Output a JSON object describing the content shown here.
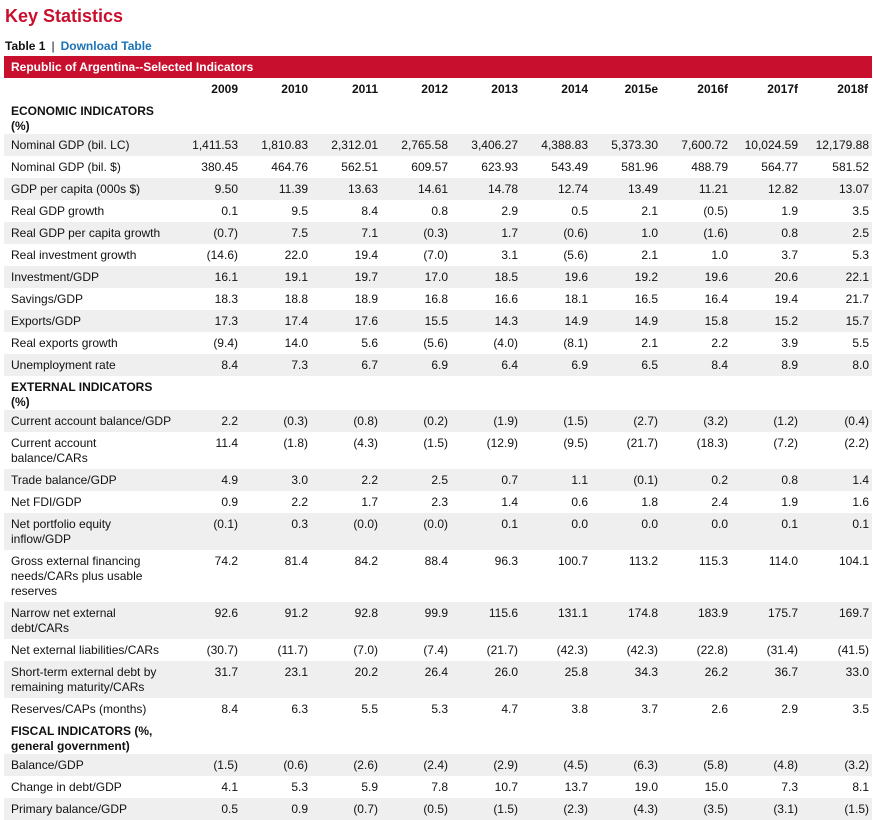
{
  "page": {
    "title": "Key Statistics",
    "table_label": "Table 1",
    "separator": "|",
    "download_label": "Download Table",
    "banner": "Republic of Argentina--Selected Indicators"
  },
  "colors": {
    "accent": "#c8102e",
    "link": "#1a73b8",
    "row_shade": "#efefef"
  },
  "table": {
    "years": [
      "2009",
      "2010",
      "2011",
      "2012",
      "2013",
      "2014",
      "2015e",
      "2016f",
      "2017f",
      "2018f"
    ],
    "sections": [
      {
        "title": "ECONOMIC INDICATORS (%)",
        "rows": [
          {
            "label": "Nominal GDP (bil. LC)",
            "values": [
              "1,411.53",
              "1,810.83",
              "2,312.01",
              "2,765.58",
              "3,406.27",
              "4,388.83",
              "5,373.30",
              "7,600.72",
              "10,024.59",
              "12,179.88"
            ]
          },
          {
            "label": "Nominal GDP (bil. $)",
            "values": [
              "380.45",
              "464.76",
              "562.51",
              "609.57",
              "623.93",
              "543.49",
              "581.96",
              "488.79",
              "564.77",
              "581.52"
            ]
          },
          {
            "label": "GDP per capita (000s $)",
            "values": [
              "9.50",
              "11.39",
              "13.63",
              "14.61",
              "14.78",
              "12.74",
              "13.49",
              "11.21",
              "12.82",
              "13.07"
            ]
          },
          {
            "label": "Real GDP growth",
            "values": [
              "0.1",
              "9.5",
              "8.4",
              "0.8",
              "2.9",
              "0.5",
              "2.1",
              "(0.5)",
              "1.9",
              "3.5"
            ]
          },
          {
            "label": "Real GDP per capita growth",
            "values": [
              "(0.7)",
              "7.5",
              "7.1",
              "(0.3)",
              "1.7",
              "(0.6)",
              "1.0",
              "(1.6)",
              "0.8",
              "2.5"
            ]
          },
          {
            "label": "Real investment growth",
            "values": [
              "(14.6)",
              "22.0",
              "19.4",
              "(7.0)",
              "3.1",
              "(5.6)",
              "2.1",
              "1.0",
              "3.7",
              "5.3"
            ]
          },
          {
            "label": "Investment/GDP",
            "values": [
              "16.1",
              "19.1",
              "19.7",
              "17.0",
              "18.5",
              "19.6",
              "19.2",
              "19.6",
              "20.6",
              "22.1"
            ]
          },
          {
            "label": "Savings/GDP",
            "values": [
              "18.3",
              "18.8",
              "18.9",
              "16.8",
              "16.6",
              "18.1",
              "16.5",
              "16.4",
              "19.4",
              "21.7"
            ]
          },
          {
            "label": "Exports/GDP",
            "values": [
              "17.3",
              "17.4",
              "17.6",
              "15.5",
              "14.3",
              "14.9",
              "14.9",
              "15.8",
              "15.2",
              "15.7"
            ]
          },
          {
            "label": "Real exports growth",
            "values": [
              "(9.4)",
              "14.0",
              "5.6",
              "(5.6)",
              "(4.0)",
              "(8.1)",
              "2.1",
              "2.2",
              "3.9",
              "5.5"
            ]
          },
          {
            "label": "Unemployment rate",
            "values": [
              "8.4",
              "7.3",
              "6.7",
              "6.9",
              "6.4",
              "6.9",
              "6.5",
              "8.4",
              "8.9",
              "8.0"
            ]
          }
        ]
      },
      {
        "title": "EXTERNAL INDICATORS (%)",
        "rows": [
          {
            "label": "Current account balance/GDP",
            "values": [
              "2.2",
              "(0.3)",
              "(0.8)",
              "(0.2)",
              "(1.9)",
              "(1.5)",
              "(2.7)",
              "(3.2)",
              "(1.2)",
              "(0.4)"
            ]
          },
          {
            "label": "Current account balance/CARs",
            "values": [
              "11.4",
              "(1.8)",
              "(4.3)",
              "(1.5)",
              "(12.9)",
              "(9.5)",
              "(21.7)",
              "(18.3)",
              "(7.2)",
              "(2.2)"
            ]
          },
          {
            "label": "Trade balance/GDP",
            "values": [
              "4.9",
              "3.0",
              "2.2",
              "2.5",
              "0.7",
              "1.1",
              "(0.1)",
              "0.2",
              "0.8",
              "1.4"
            ]
          },
          {
            "label": "Net FDI/GDP",
            "values": [
              "0.9",
              "2.2",
              "1.7",
              "2.3",
              "1.4",
              "0.6",
              "1.8",
              "2.4",
              "1.9",
              "1.6"
            ]
          },
          {
            "label": "Net portfolio equity inflow/GDP",
            "values": [
              "(0.1)",
              "0.3",
              "(0.0)",
              "(0.0)",
              "0.1",
              "0.0",
              "0.0",
              "0.0",
              "0.1",
              "0.1"
            ]
          },
          {
            "label": "Gross external financing needs/CARs plus usable reserves",
            "values": [
              "74.2",
              "81.4",
              "84.2",
              "88.4",
              "96.3",
              "100.7",
              "113.2",
              "115.3",
              "114.0",
              "104.1"
            ]
          },
          {
            "label": "Narrow net external debt/CARs",
            "values": [
              "92.6",
              "91.2",
              "92.8",
              "99.9",
              "115.6",
              "131.1",
              "174.8",
              "183.9",
              "175.7",
              "169.7"
            ]
          },
          {
            "label": "Net external liabilities/CARs",
            "values": [
              "(30.7)",
              "(11.7)",
              "(7.0)",
              "(7.4)",
              "(21.7)",
              "(42.3)",
              "(42.3)",
              "(22.8)",
              "(31.4)",
              "(41.5)"
            ]
          },
          {
            "label": "Short-term external debt by remaining maturity/CARs",
            "values": [
              "31.7",
              "23.1",
              "20.2",
              "26.4",
              "26.0",
              "25.8",
              "34.3",
              "26.2",
              "36.7",
              "33.0"
            ]
          },
          {
            "label": "Reserves/CAPs (months)",
            "values": [
              "8.4",
              "6.3",
              "5.5",
              "5.3",
              "4.7",
              "3.8",
              "3.7",
              "2.6",
              "2.9",
              "3.5"
            ]
          }
        ]
      },
      {
        "title": "FISCAL INDICATORS (%, general government)",
        "rows": [
          {
            "label": "Balance/GDP",
            "values": [
              "(1.5)",
              "(0.6)",
              "(2.6)",
              "(2.4)",
              "(2.9)",
              "(4.5)",
              "(6.3)",
              "(5.8)",
              "(4.8)",
              "(3.2)"
            ]
          },
          {
            "label": "Change in debt/GDP",
            "values": [
              "4.1",
              "5.3",
              "5.9",
              "7.8",
              "10.7",
              "13.7",
              "19.0",
              "15.0",
              "7.3",
              "8.1"
            ]
          },
          {
            "label": "Primary balance/GDP",
            "values": [
              "0.5",
              "0.9",
              "(0.7)",
              "(0.5)",
              "(1.5)",
              "(2.3)",
              "(4.3)",
              "(3.5)",
              "(3.1)",
              "(1.5)"
            ]
          }
        ]
      }
    ]
  }
}
